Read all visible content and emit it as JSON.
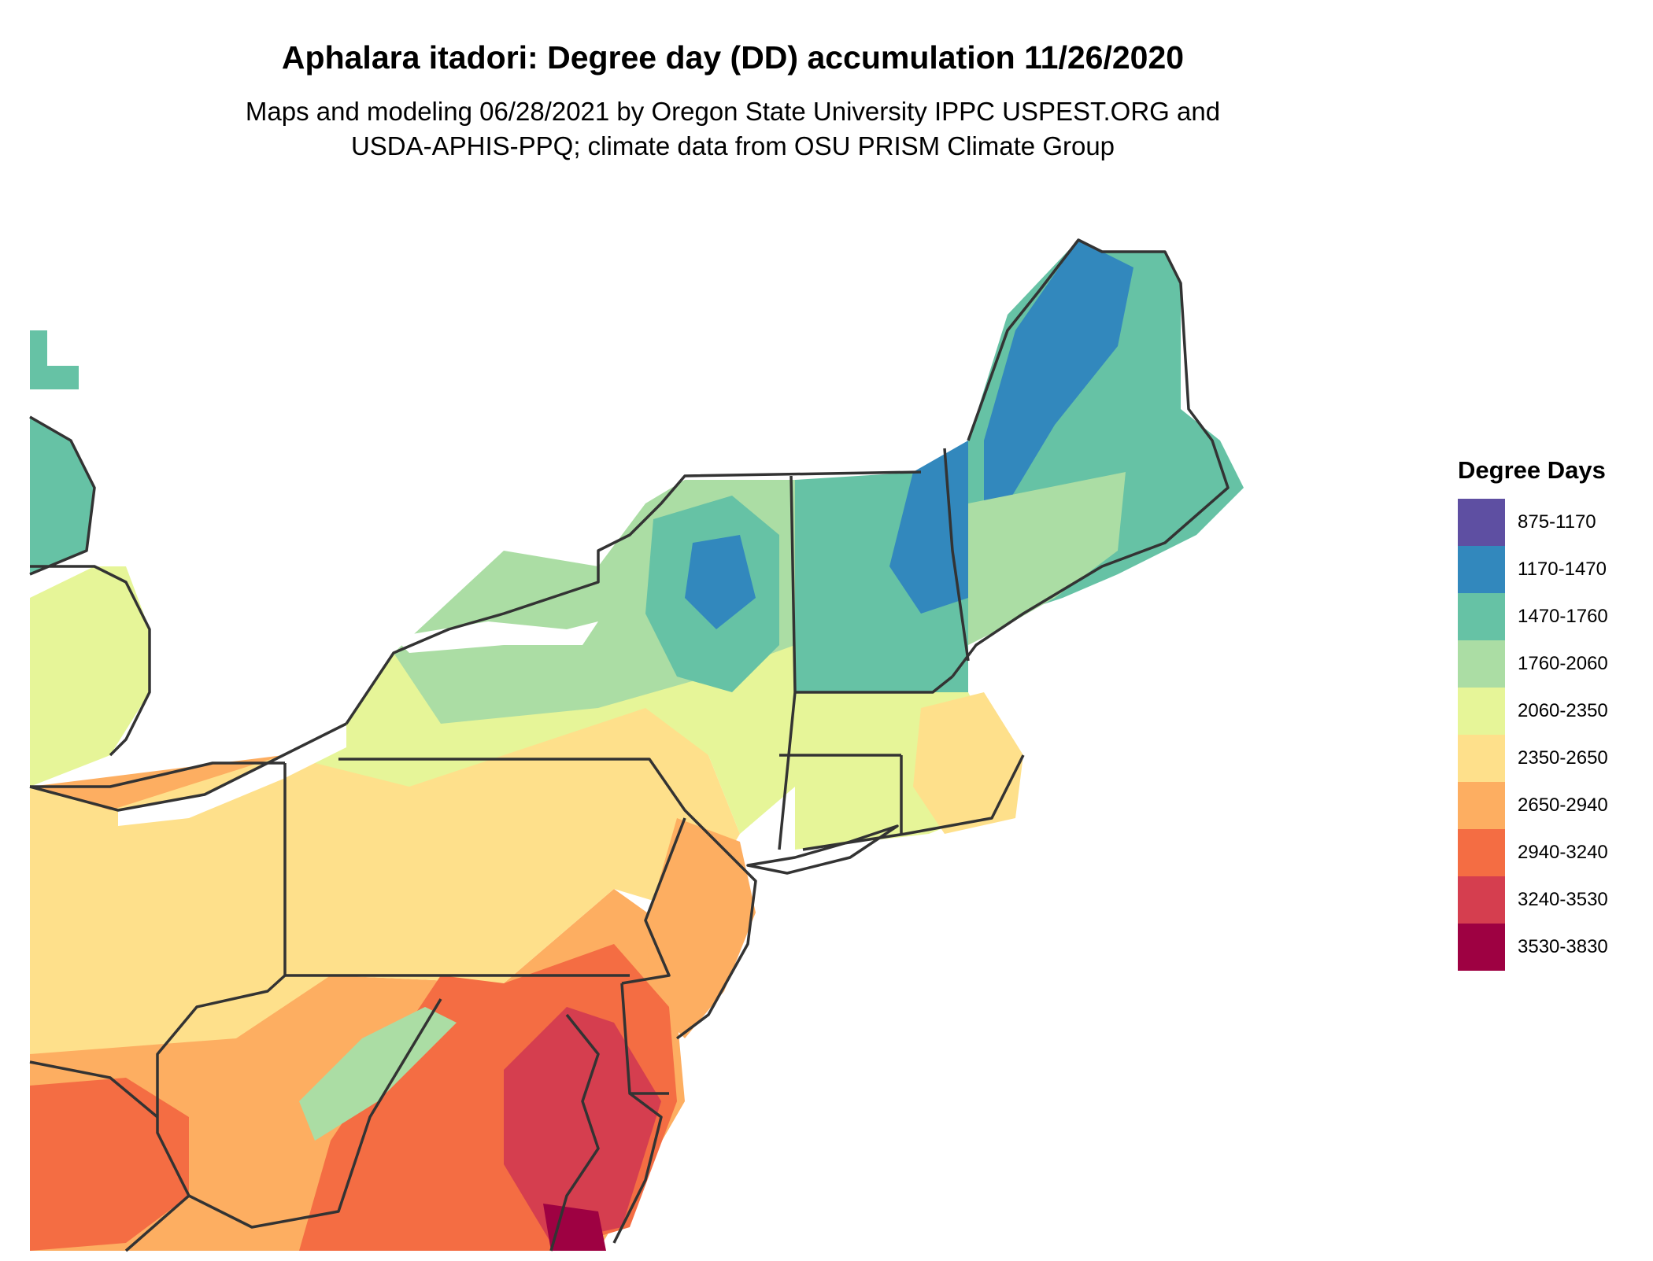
{
  "title": "Aphalara itadori: Degree day (DD) accumulation 11/26/2020",
  "subtitle_line1": "Maps and modeling 06/28/2021 by Oregon State University IPPC USPEST.ORG and",
  "subtitle_line2": "USDA-APHIS-PPQ; climate data from OSU PRISM Climate Group",
  "legend": {
    "title": "Degree Days",
    "items": [
      {
        "label": "875-1170",
        "color": "#5e4fa2"
      },
      {
        "label": "1170-1470",
        "color": "#3288bd"
      },
      {
        "label": "1470-1760",
        "color": "#66c2a5"
      },
      {
        "label": "1760-2060",
        "color": "#abdda4"
      },
      {
        "label": "2060-2350",
        "color": "#e6f598"
      },
      {
        "label": "2350-2650",
        "color": "#fee08b"
      },
      {
        "label": "2650-2940",
        "color": "#fdae61"
      },
      {
        "label": "2940-3240",
        "color": "#f46d43"
      },
      {
        "label": "3240-3530",
        "color": "#d53e4f"
      },
      {
        "label": "3530-3830",
        "color": "#9e0142"
      }
    ]
  }
}
